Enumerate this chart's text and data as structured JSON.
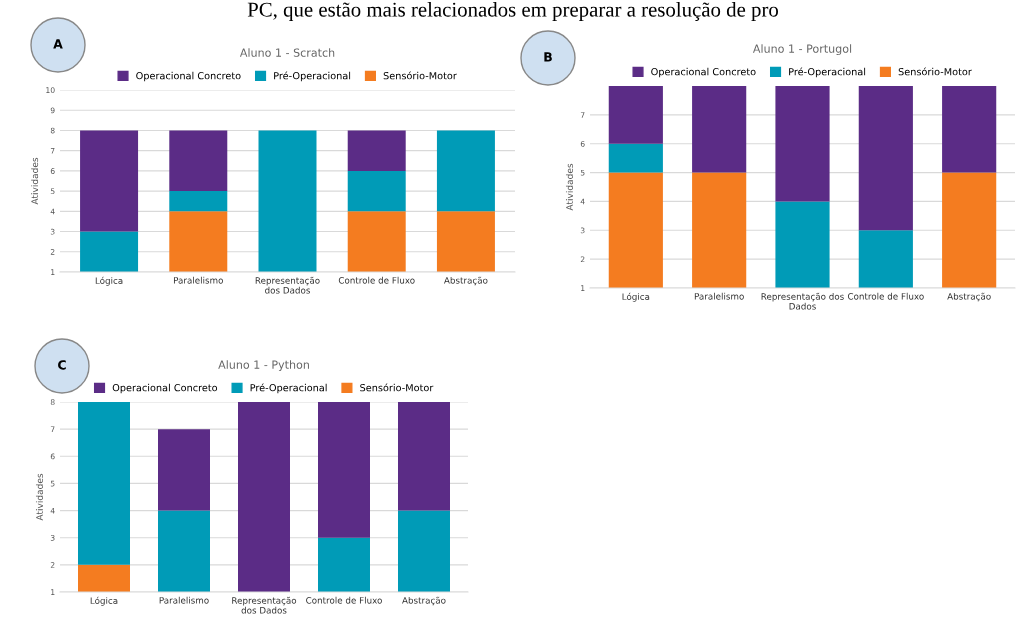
{
  "chart_data": [
    {
      "type": "bar",
      "stacked": true,
      "title": "Aluno 1 - Scratch",
      "ylabel": "Atividades",
      "annotations": [
        "A",
        "PC, que estão mais relacionados em preparar a resolução de pro"
      ],
      "categories": [
        "Lógica",
        "Paralelismo",
        "Representação\ndos Dados",
        "Controle de Fluxo",
        "Abstração"
      ],
      "series": [
        {
          "name": "Sensório-Motor",
          "color": "#f47c20",
          "values": [
            null,
            4,
            null,
            4,
            4
          ]
        },
        {
          "name": "Pré-Operacional",
          "color": "#009bb7",
          "values": [
            3,
            1,
            8,
            2,
            4
          ]
        },
        {
          "name": "Operacional Concreto",
          "color": "#5b2c86",
          "values": [
            5,
            3,
            null,
            2,
            null
          ]
        }
      ],
      "ylim": [
        1,
        10
      ],
      "yticks": [
        1,
        2,
        3,
        4,
        5,
        6,
        7,
        8,
        9,
        10
      ],
      "grid": "y",
      "legend": "top"
    },
    {
      "type": "bar",
      "stacked": true,
      "title": "Aluno 1 - Portugol",
      "ylabel": "Atividades",
      "annotations": [
        "B"
      ],
      "categories": [
        "Lógica",
        "Paralelismo",
        "Representação dos\nDados",
        "Controle de Fluxo",
        "Abstração"
      ],
      "series": [
        {
          "name": "Sensório-Motor",
          "color": "#f47c20",
          "values": [
            5,
            5,
            null,
            null,
            5
          ]
        },
        {
          "name": "Pré-Operacional",
          "color": "#009bb7",
          "values": [
            1,
            null,
            4,
            3,
            null
          ]
        },
        {
          "name": "Operacional Concreto",
          "color": "#5b2c86",
          "values": [
            2,
            3,
            4,
            5,
            3
          ]
        }
      ],
      "ylim": [
        1,
        8
      ],
      "yticks": [
        1,
        2,
        3,
        4,
        5,
        6,
        7
      ],
      "grid": "y",
      "legend": "top"
    },
    {
      "type": "bar",
      "stacked": true,
      "title": "Aluno 1 - Python",
      "ylabel": "Atividades",
      "annotations": [
        "C"
      ],
      "categories": [
        "Lógica",
        "Paralelismo",
        "Representação\ndos Dados",
        "Controle de Fluxo",
        "Abstração"
      ],
      "series": [
        {
          "name": "Sensório-Motor",
          "color": "#f47c20",
          "values": [
            2,
            null,
            null,
            null,
            null
          ]
        },
        {
          "name": "Pré-Operacional",
          "color": "#009bb7",
          "values": [
            6,
            4,
            null,
            3,
            4
          ]
        },
        {
          "name": "Operacional Concreto",
          "color": "#5b2c86",
          "values": [
            null,
            3,
            8,
            5,
            4
          ]
        }
      ],
      "ylim": [
        1,
        8
      ],
      "yticks": [
        1,
        2,
        3,
        4,
        5,
        6,
        7,
        8
      ],
      "grid": "y",
      "legend": "top"
    }
  ]
}
